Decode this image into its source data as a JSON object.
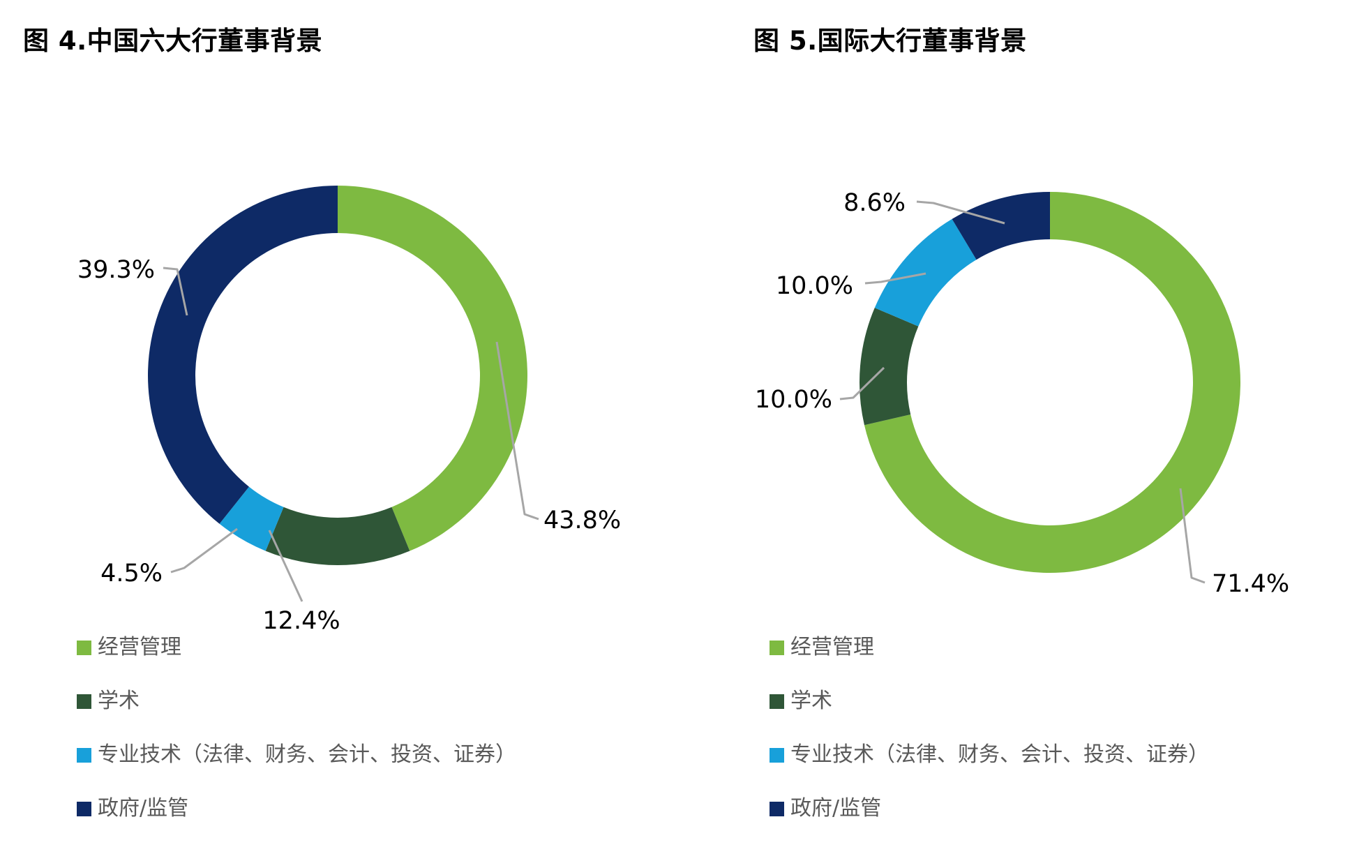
{
  "page": {
    "background": "#ffffff",
    "label_text_color": "#000000",
    "legend_text_color": "#595959",
    "leader_line_color": "#a6a6a6"
  },
  "chart_data": [
    {
      "type": "pie",
      "subtype": "donut",
      "title": "图 4.中国六大行董事背景",
      "categories": [
        "经营管理",
        "学术",
        "专业技术（法律、财务、会计、投资、证券）",
        "政府/监管"
      ],
      "values": [
        43.8,
        12.4,
        4.5,
        39.3
      ],
      "value_labels": [
        "43.8%",
        "12.4%",
        "4.5%",
        "39.3%"
      ],
      "colors": [
        "#7eba41",
        "#2f5637",
        "#18a0da",
        "#0e2a66"
      ],
      "start_angle_deg": 0,
      "direction": "clockwise",
      "legend_position": "bottom-left",
      "grid": false
    },
    {
      "type": "pie",
      "subtype": "donut",
      "title": "图 5.国际大行董事背景",
      "categories": [
        "经营管理",
        "学术",
        "专业技术（法律、财务、会计、投资、证券）",
        "政府/监管"
      ],
      "values": [
        71.4,
        10.0,
        10.0,
        8.6
      ],
      "value_labels": [
        "71.4%",
        "10.0%",
        "10.0%",
        "8.6%"
      ],
      "colors": [
        "#7eba41",
        "#2f5637",
        "#18a0da",
        "#0e2a66"
      ],
      "start_angle_deg": 0,
      "direction": "clockwise",
      "legend_position": "bottom-left",
      "grid": false
    }
  ]
}
